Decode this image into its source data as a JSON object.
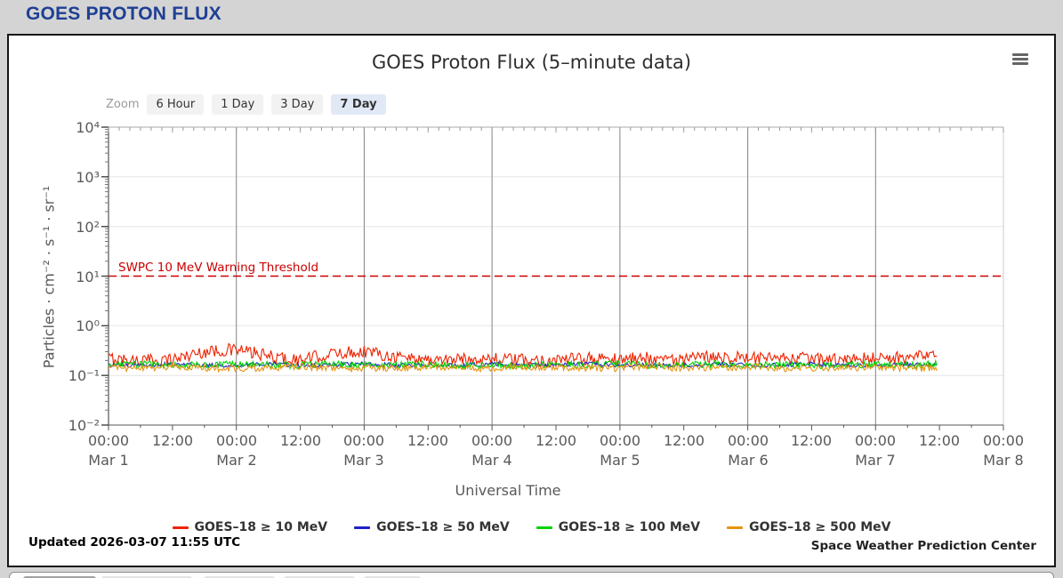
{
  "page": {
    "header_title": "GOES PROTON FLUX"
  },
  "chart": {
    "title": "GOES Proton Flux (5–minute data)",
    "menu_icon": "hamburger-icon",
    "zoom_label": "Zoom",
    "zoom_buttons": [
      {
        "label": "6 Hour",
        "selected": false
      },
      {
        "label": "1 Day",
        "selected": false
      },
      {
        "label": "3 Day",
        "selected": false
      },
      {
        "label": "7 Day",
        "selected": true
      }
    ],
    "updated": "Updated 2026-03-07 11:55 UTC",
    "credit": "Space Weather Prediction Center",
    "legend": [
      {
        "label": "GOES–18 ≥ 10 MeV",
        "color": "#ee2200"
      },
      {
        "label": "GOES–18 ≥ 50 MeV",
        "color": "#2121c8"
      },
      {
        "label": "GOES–18 ≥ 100 MeV",
        "color": "#00d400"
      },
      {
        "label": "GOES–18 ≥ 500 MeV",
        "color": "#e79410"
      }
    ]
  },
  "chart_data": {
    "type": "line",
    "title": "GOES Proton Flux (5-minute data)",
    "xlabel": "Universal Time",
    "ylabel": "Particles · cm⁻² · s⁻¹ · sr⁻¹",
    "y_scale": "log",
    "ylim": [
      0.01,
      10000
    ],
    "y_tick_labels": [
      "10⁴",
      "10³",
      "10²",
      "10¹",
      "10⁰",
      "10⁻¹",
      "10⁻²"
    ],
    "x_range_days": 7,
    "x_time_labels": [
      "00:00",
      "12:00",
      "00:00",
      "12:00",
      "00:00",
      "12:00",
      "00:00",
      "12:00",
      "00:00",
      "12:00",
      "00:00",
      "12:00",
      "00:00",
      "12:00",
      "00:00"
    ],
    "x_day_labels": [
      "Mar 1",
      "Mar 2",
      "Mar 3",
      "Mar 4",
      "Mar 5",
      "Mar 6",
      "Mar 7",
      "Mar 8"
    ],
    "grid": {
      "h_color": "#e6e6e6",
      "v_color": "#828282"
    },
    "threshold": {
      "value": 10,
      "label": "SWPC 10 MeV Warning Threshold",
      "color": "#cc0000",
      "style": "dashed"
    },
    "sample_step_days": 0.25,
    "data_end_day": 6.48,
    "series": [
      {
        "name": "GOES-18 ≥ 10 MeV",
        "color": "#ee2200",
        "jitter": 0.3,
        "values": [
          0.22,
          0.2,
          0.21,
          0.3,
          0.33,
          0.24,
          0.2,
          0.27,
          0.31,
          0.24,
          0.21,
          0.21,
          0.22,
          0.2,
          0.2,
          0.22,
          0.21,
          0.23,
          0.2,
          0.25,
          0.22,
          0.21,
          0.22,
          0.2,
          0.23,
          0.22,
          0.26
        ]
      },
      {
        "name": "GOES-18 ≥ 50 MeV",
        "color": "#2121c8",
        "jitter": 0.1,
        "values": [
          0.16,
          0.16,
          0.17,
          0.16,
          0.16,
          0.17,
          0.16,
          0.16,
          0.17,
          0.16,
          0.16,
          0.16,
          0.17,
          0.16,
          0.16,
          0.17,
          0.16,
          0.16,
          0.16,
          0.17,
          0.16,
          0.16,
          0.17,
          0.16,
          0.16,
          0.17,
          0.16
        ]
      },
      {
        "name": "GOES-18 ≥ 100 MeV",
        "color": "#00d400",
        "jitter": 0.16,
        "values": [
          0.16,
          0.17,
          0.16,
          0.16,
          0.17,
          0.16,
          0.16,
          0.17,
          0.16,
          0.16,
          0.17,
          0.16,
          0.16,
          0.16,
          0.17,
          0.16,
          0.17,
          0.16,
          0.16,
          0.17,
          0.16,
          0.17,
          0.16,
          0.16,
          0.17,
          0.16,
          0.17
        ]
      },
      {
        "name": "GOES-18 ≥ 500 MeV",
        "color": "#e79410",
        "jitter": 0.16,
        "values": [
          0.14,
          0.14,
          0.15,
          0.14,
          0.14,
          0.14,
          0.15,
          0.14,
          0.14,
          0.14,
          0.15,
          0.14,
          0.14,
          0.15,
          0.14,
          0.14,
          0.14,
          0.15,
          0.14,
          0.14,
          0.15,
          0.14,
          0.14,
          0.14,
          0.15,
          0.14,
          0.14
        ]
      }
    ],
    "legend_position": "bottom"
  }
}
